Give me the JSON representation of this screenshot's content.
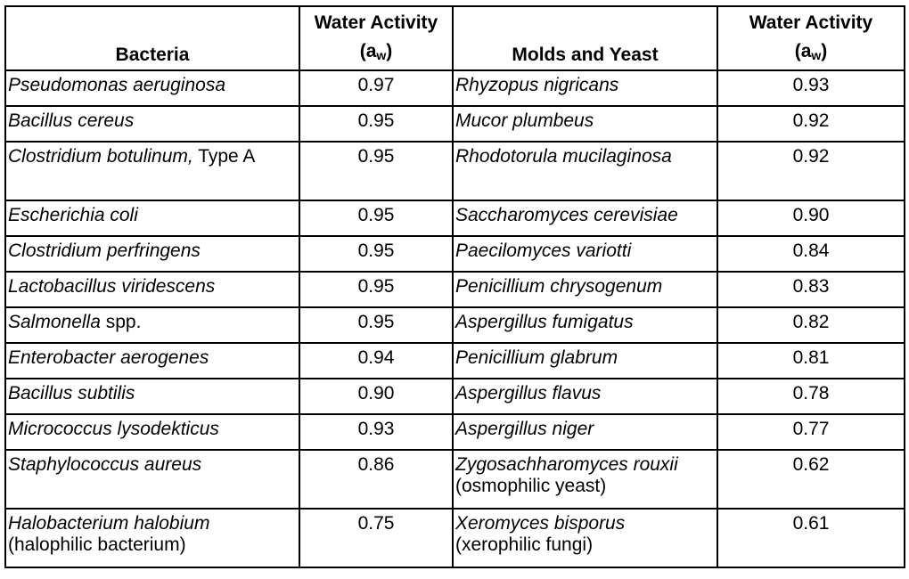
{
  "headers": {
    "bacteria": "Bacteria",
    "aw_left_line1": "Water Activity",
    "aw_left_a": "(a",
    "aw_left_sub": "w",
    "aw_left_close": ")",
    "molds": "Molds and Yeast",
    "aw_right_line1": "Water Activity",
    "aw_right_a": "(a",
    "aw_right_sub": "w",
    "aw_right_close": ")"
  },
  "rows": [
    {
      "b_it": "Pseudomonas aeruginosa",
      "b_rest": "",
      "b_aw": "0.97",
      "m_it": "Rhyzopus nigricans",
      "m_rest": "",
      "m_aw": "0.93"
    },
    {
      "b_it": "Bacillus cereus",
      "b_rest": "",
      "b_aw": "0.95",
      "m_it": "Mucor plumbeus",
      "m_rest": "",
      "m_aw": "0.92"
    },
    {
      "b_it": "Clostridium botulinum,",
      "b_rest": " Type A",
      "b_aw": "0.95",
      "m_it": "Rhodotorula mucilaginosa",
      "m_rest": "",
      "m_aw": "0.92"
    },
    {
      "b_it": "Escherichia coli",
      "b_rest": "",
      "b_aw": "0.95",
      "m_it": "Saccharomyces cerevisiae",
      "m_rest": "",
      "m_aw": "0.90"
    },
    {
      "b_it": "Clostridium perfringens",
      "b_rest": "",
      "b_aw": "0.95",
      "m_it": "Paecilomyces variotti",
      "m_rest": "",
      "m_aw": "0.84"
    },
    {
      "b_it": "Lactobacillus viridescens",
      "b_rest": "",
      "b_aw": "0.95",
      "m_it": "Penicillium chrysogenum",
      "m_rest": "",
      "m_aw": "0.83"
    },
    {
      "b_it": "Salmonella",
      "b_rest": " spp.",
      "b_aw": "0.95",
      "m_it": "Aspergillus fumigatus",
      "m_rest": "",
      "m_aw": "0.82"
    },
    {
      "b_it": "Enterobacter aerogenes",
      "b_rest": "",
      "b_aw": "0.94",
      "m_it": "Penicillium glabrum",
      "m_rest": "",
      "m_aw": "0.81"
    },
    {
      "b_it": "Bacillus subtilis",
      "b_rest": "",
      "b_aw": "0.90",
      "m_it": "Aspergillus flavus",
      "m_rest": "",
      "m_aw": "0.78"
    },
    {
      "b_it": "Micrococcus lysodekticus",
      "b_rest": "",
      "b_aw": "0.93",
      "m_it": "Aspergillus niger",
      "m_rest": "",
      "m_aw": "0.77"
    },
    {
      "b_it": "Staphylococcus aureus",
      "b_rest": "",
      "b_aw": "0.86",
      "m_it": "Zygosachharomyces rouxii",
      "m_rest": "(osmophilic yeast)",
      "m_aw": "0.62"
    },
    {
      "b_it": "Halobacterium halobium",
      "b_rest": "(halophilic bacterium)",
      "b_aw": "0.75",
      "m_it": "Xeromyces bisporus",
      "m_rest": "(xerophilic fungi)",
      "m_aw": "0.61"
    }
  ]
}
